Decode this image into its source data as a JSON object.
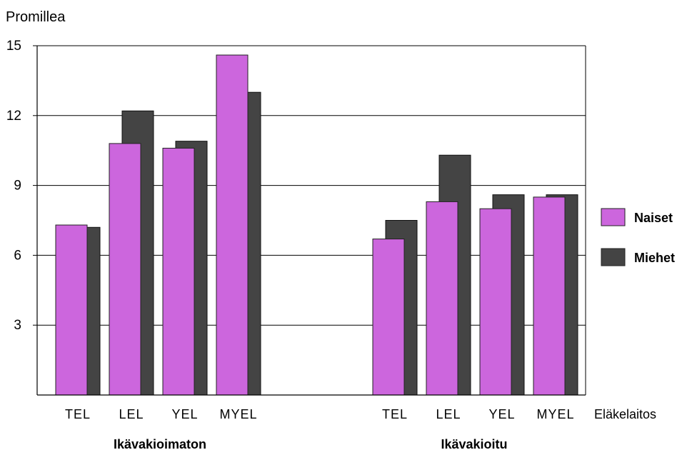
{
  "chart_data": {
    "type": "bar",
    "ylabel": "Promillea",
    "xlabel": "Eläkelaitos",
    "ylim": [
      0,
      15
    ],
    "yticks": [
      3,
      6,
      9,
      12,
      15
    ],
    "grid": true,
    "legend_position": "right",
    "groups": [
      {
        "label": "Ikävakioimaton",
        "categories": [
          "TEL",
          "LEL",
          "YEL",
          "MYEL"
        ]
      },
      {
        "label": "Ikävakioitu",
        "categories": [
          "TEL",
          "LEL",
          "YEL",
          "MYEL"
        ]
      }
    ],
    "series": [
      {
        "name": "Naiset",
        "color": "#cc66dd",
        "values": [
          [
            7.3,
            10.8,
            10.6,
            14.6
          ],
          [
            6.7,
            8.3,
            8.0,
            8.5
          ]
        ]
      },
      {
        "name": "Miehet",
        "color": "#444444",
        "values": [
          [
            7.2,
            12.2,
            10.9,
            13.0
          ],
          [
            7.5,
            10.3,
            8.6,
            8.6
          ]
        ]
      }
    ]
  }
}
